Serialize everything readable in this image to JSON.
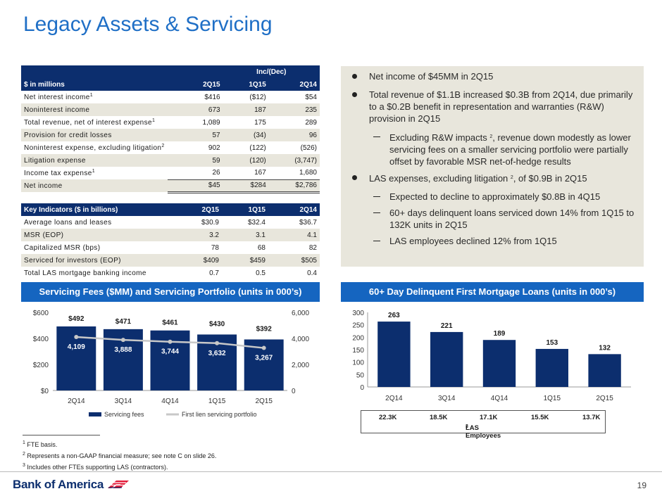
{
  "title": "Legacy Assets & Servicing",
  "income_table": {
    "group_header": "Inc/(Dec)",
    "headers": [
      "$ in millions",
      "2Q15",
      "1Q15",
      "2Q14"
    ],
    "rows": [
      {
        "label": "Net interest income",
        "sup": "1",
        "v": [
          "$416",
          "($12)",
          "$54"
        ]
      },
      {
        "label": "Noninterest income",
        "sup": "",
        "v": [
          "673",
          "187",
          "235"
        ]
      },
      {
        "label": "Total revenue, net of interest expense",
        "sup": "1",
        "v": [
          "1,089",
          "175",
          "289"
        ]
      },
      {
        "label": "Provision for credit losses",
        "sup": "",
        "v": [
          "57",
          "(34)",
          "96"
        ]
      },
      {
        "label": "Noninterest expense, excluding litigation",
        "sup": "2",
        "v": [
          "902",
          "(122)",
          "(526)"
        ]
      },
      {
        "label": "Litigation expense",
        "sup": "",
        "v": [
          "59",
          "(120)",
          "(3,747)"
        ]
      },
      {
        "label": "Income tax expense",
        "sup": "1",
        "v": [
          "26",
          "167",
          "1,680"
        ]
      },
      {
        "label": "Net income",
        "sup": "",
        "v": [
          "$45",
          "$284",
          "$2,786"
        ]
      }
    ]
  },
  "kpi_table": {
    "headers": [
      "Key Indicators ($ in billions)",
      "2Q15",
      "1Q15",
      "2Q14"
    ],
    "rows": [
      {
        "label": "Average loans and leases",
        "v": [
          "$30.9",
          "$32.4",
          "$36.7"
        ]
      },
      {
        "label": "MSR (EOP)",
        "v": [
          "3.2",
          "3.1",
          "4.1"
        ]
      },
      {
        "label": "Capitalized MSR (bps)",
        "v": [
          "78",
          "68",
          "82"
        ]
      },
      {
        "label": "Serviced for investors (EOP)",
        "v": [
          "$409",
          "$459",
          "$505"
        ]
      },
      {
        "label": "Total LAS mortgage banking income",
        "v": [
          "0.7",
          "0.5",
          "0.4"
        ]
      }
    ]
  },
  "bullets": {
    "b1": "Net income of $45MM in 2Q15",
    "b2": "Total revenue of $1.1B increased $0.3B from 2Q14, due primarily to a $0.2B benefit in representation and warranties (R&W) provision in 2Q15",
    "s1a": "Excluding R&W impacts",
    "s1sup": "2",
    "s1b": ", revenue down modestly as lower servicing fees on a smaller servicing portfolio were partially offset by favorable MSR net-of-hedge results",
    "b3a": "LAS expenses, excluding litigation",
    "b3sup": "2",
    "b3b": ", of $0.9B in 2Q15",
    "s2": "Expected to decline to approximately $0.8B in 4Q15",
    "s3": "60+ days delinquent loans serviced down 14% from 1Q15 to 132K units in 2Q15",
    "s4": "LAS employees declined 12% from 1Q15"
  },
  "servicing_header": "Servicing Fees ($MM) and Servicing Portfolio (units in 000’s)",
  "delinquent_header": "60+ Day Delinquent First Mortgage Loans (units in 000’s)",
  "chart_data": [
    {
      "type": "bar",
      "categories": [
        "2Q14",
        "3Q14",
        "4Q14",
        "1Q15",
        "2Q15"
      ],
      "series": [
        {
          "name": "Servicing fees",
          "values": [
            492,
            471,
            461,
            430,
            392
          ],
          "labels": [
            "$492",
            "$471",
            "$461",
            "$430",
            "$392"
          ],
          "axis": "left",
          "color": "#0c2e6e"
        },
        {
          "name": "First lien servicing portfolio",
          "type": "line",
          "values": [
            4109,
            3888,
            3744,
            3632,
            3267
          ],
          "labels": [
            "4,109",
            "3,888",
            "3,744",
            "3,632",
            "3,267"
          ],
          "axis": "right",
          "color": "#c8c8c8"
        }
      ],
      "y_left": {
        "ticks": [
          "$0",
          "$200",
          "$400",
          "$600"
        ],
        "range": [
          0,
          600
        ]
      },
      "y_right": {
        "ticks": [
          "0",
          "2,000",
          "4,000",
          "6,000"
        ],
        "range": [
          0,
          6000
        ]
      },
      "legend_position": "bottom"
    },
    {
      "type": "bar",
      "categories": [
        "2Q14",
        "3Q14",
        "4Q14",
        "1Q15",
        "2Q15"
      ],
      "values": [
        263,
        221,
        189,
        153,
        132
      ],
      "labels": [
        "263",
        "221",
        "189",
        "153",
        "132"
      ],
      "y_ticks": [
        "0",
        "50",
        "100",
        "150",
        "200",
        "250",
        "300"
      ],
      "ylim": [
        0,
        300
      ],
      "color": "#0c2e6e"
    }
  ],
  "employees": {
    "values": [
      "22.3K",
      "18.5K",
      "17.1K",
      "15.5K",
      "13.7K"
    ],
    "label": "LAS Employees",
    "sup": "3"
  },
  "footnotes": [
    {
      "sup": "1",
      "text": "FTE basis."
    },
    {
      "sup": "2",
      "text": "Represents a non-GAAP financial measure; see note C on slide 26."
    },
    {
      "sup": "3",
      "text": "Includes other FTEs supporting LAS (contractors)."
    }
  ],
  "brand": "Bank of America",
  "page_number": "19"
}
